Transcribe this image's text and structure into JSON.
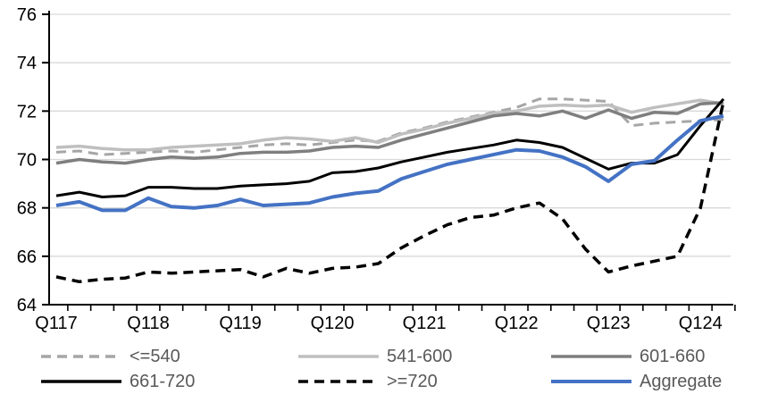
{
  "chart_data": {
    "type": "line",
    "title": "",
    "xlabel": "",
    "ylabel": "",
    "ylim": [
      64,
      76
    ],
    "y_ticks": [
      64,
      66,
      68,
      70,
      72,
      74,
      76
    ],
    "grid": true,
    "legend_position": "bottom",
    "x_axis_labels": [
      "Q117",
      "Q118",
      "Q119",
      "Q120",
      "Q121",
      "Q122",
      "Q123",
      "Q124"
    ],
    "x_categories": [
      "Q117",
      "Q217",
      "Q317",
      "Q417",
      "Q118",
      "Q218",
      "Q318",
      "Q418",
      "Q119",
      "Q219",
      "Q319",
      "Q419",
      "Q120",
      "Q220",
      "Q320",
      "Q420",
      "Q121",
      "Q221",
      "Q321",
      "Q421",
      "Q122",
      "Q222",
      "Q322",
      "Q422",
      "Q123",
      "Q223",
      "Q323",
      "Q423",
      "Q124",
      "Q224"
    ],
    "series": [
      {
        "name": "<=540",
        "color": "#A6A6A6",
        "dashed": true,
        "width": 3,
        "values": [
          70.3,
          70.35,
          70.2,
          70.25,
          70.3,
          70.35,
          70.3,
          70.4,
          70.5,
          70.6,
          70.65,
          70.6,
          70.7,
          70.8,
          70.75,
          71.1,
          71.3,
          71.55,
          71.75,
          71.95,
          72.15,
          72.5,
          72.5,
          72.45,
          72.4,
          71.4,
          71.5,
          71.55,
          71.6,
          71.65
        ]
      },
      {
        "name": "541-600",
        "color": "#BFBFBF",
        "dashed": false,
        "width": 3.5,
        "values": [
          70.5,
          70.55,
          70.45,
          70.4,
          70.4,
          70.5,
          70.55,
          70.6,
          70.65,
          70.8,
          70.9,
          70.85,
          70.75,
          70.9,
          70.7,
          71.05,
          71.25,
          71.5,
          71.7,
          71.9,
          72.0,
          72.2,
          72.25,
          72.2,
          72.25,
          71.95,
          72.15,
          72.3,
          72.45,
          72.3
        ]
      },
      {
        "name": "601-660",
        "color": "#7F7F7F",
        "dashed": false,
        "width": 3.5,
        "values": [
          69.85,
          70.0,
          69.9,
          69.85,
          70.0,
          70.1,
          70.05,
          70.1,
          70.25,
          70.3,
          70.3,
          70.35,
          70.5,
          70.55,
          70.5,
          70.8,
          71.05,
          71.3,
          71.55,
          71.8,
          71.9,
          71.8,
          72.0,
          71.7,
          72.05,
          71.7,
          71.95,
          71.9,
          72.3,
          72.35
        ]
      },
      {
        "name": "661-720",
        "color": "#000000",
        "dashed": false,
        "width": 3,
        "values": [
          68.5,
          68.65,
          68.45,
          68.5,
          68.85,
          68.85,
          68.8,
          68.8,
          68.9,
          68.95,
          69.0,
          69.1,
          69.45,
          69.5,
          69.65,
          69.9,
          70.1,
          70.3,
          70.45,
          70.6,
          70.8,
          70.7,
          70.5,
          70.05,
          69.6,
          69.85,
          69.85,
          70.2,
          71.4,
          72.5
        ]
      },
      {
        "name": ">=720",
        "color": "#000000",
        "dashed": true,
        "width": 3.5,
        "values": [
          65.15,
          64.95,
          65.05,
          65.1,
          65.35,
          65.3,
          65.35,
          65.4,
          65.45,
          65.15,
          65.5,
          65.3,
          65.5,
          65.55,
          65.7,
          66.35,
          66.85,
          67.3,
          67.6,
          67.7,
          68.0,
          68.2,
          67.55,
          66.3,
          65.35,
          65.6,
          65.8,
          66.0,
          68.0,
          72.4
        ]
      },
      {
        "name": "Aggregate",
        "color": "#4472C4",
        "dashed": false,
        "width": 4,
        "values": [
          68.1,
          68.25,
          67.9,
          67.9,
          68.4,
          68.05,
          68.0,
          68.1,
          68.35,
          68.1,
          68.15,
          68.2,
          68.45,
          68.6,
          68.7,
          69.2,
          69.5,
          69.8,
          70.0,
          70.2,
          70.4,
          70.35,
          70.1,
          69.7,
          69.1,
          69.8,
          69.95,
          70.8,
          71.6,
          71.8
        ]
      }
    ],
    "colors": {
      "grid": "#D9D9D9",
      "axis": "#000000",
      "axis_label": "#000000",
      "legend_text": "#595959"
    }
  }
}
